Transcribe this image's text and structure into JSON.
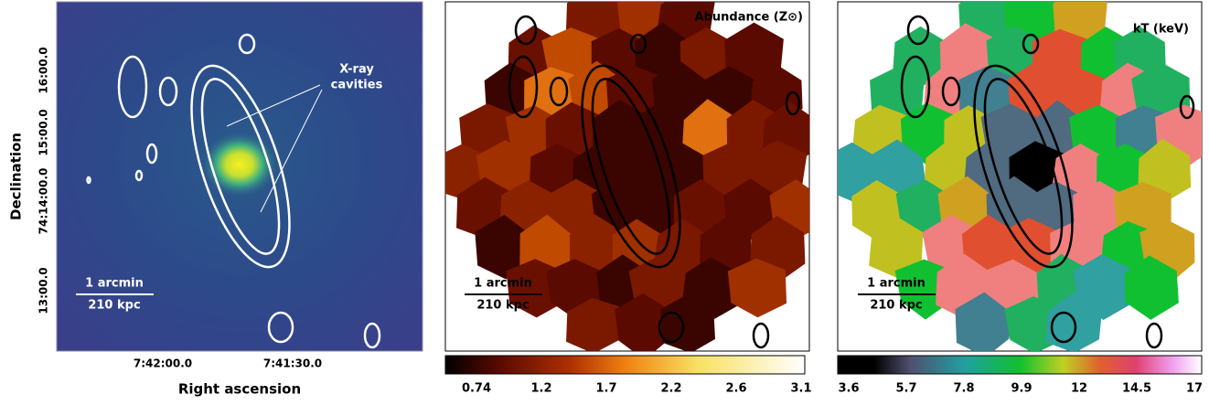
{
  "axes": {
    "x_label": "Right ascension",
    "y_label": "Declination",
    "x_ticks": [
      "7:42:00.0",
      "7:41:30.0"
    ],
    "y_ticks": [
      "16:00.0",
      "15:00.0",
      "74:14:00.0",
      "13:00.0"
    ]
  },
  "panels": [
    {
      "annotation": [
        "X-ray",
        "cavities"
      ],
      "scale_bar": {
        "top": "1 arcmin",
        "bottom": "210 kpc"
      }
    },
    {
      "title": "Abundance (Z⊙)",
      "scale_bar": {
        "top": "1 arcmin",
        "bottom": "210 kpc"
      },
      "colorbar_ticks": [
        0.74,
        1.2,
        1.7,
        2.2,
        2.6,
        3.1
      ]
    },
    {
      "title": "kT (keV)",
      "scale_bar": {
        "top": "1 arcmin",
        "bottom": "210 kpc"
      },
      "colorbar_ticks": [
        3.6,
        5.7,
        7.8,
        9.9,
        12,
        14.5,
        17
      ]
    }
  ]
}
